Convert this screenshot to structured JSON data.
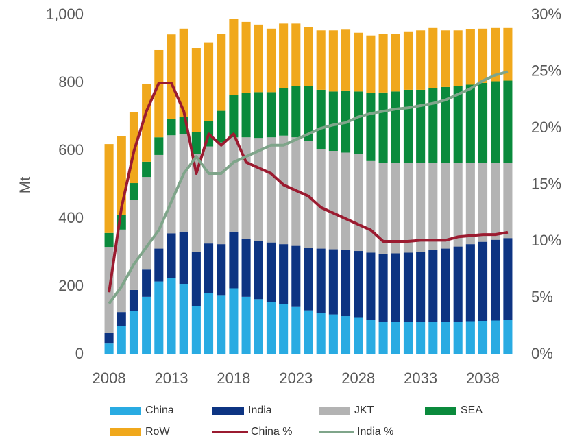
{
  "chart_data": {
    "type": "bar",
    "stacked": true,
    "y_label": "Mt",
    "x": [
      2008,
      2009,
      2010,
      2011,
      2012,
      2013,
      2014,
      2015,
      2016,
      2017,
      2018,
      2019,
      2020,
      2021,
      2022,
      2023,
      2024,
      2025,
      2026,
      2027,
      2028,
      2029,
      2030,
      2031,
      2032,
      2033,
      2034,
      2035,
      2036,
      2037,
      2038,
      2039,
      2040
    ],
    "xlim": [
      2007.5,
      2040.5
    ],
    "xticks": [
      2008,
      2013,
      2018,
      2023,
      2028,
      2033,
      2038
    ],
    "ylim": [
      0,
      1000
    ],
    "yticks": [
      0,
      200,
      400,
      600,
      800,
      {
        "value": 1000,
        "label": "1,000"
      }
    ],
    "y2lim": [
      0,
      30
    ],
    "y2ticks": [
      {
        "value": 0,
        "label": "0%"
      },
      {
        "value": 5,
        "label": "5%"
      },
      {
        "value": 10,
        "label": "10%"
      },
      {
        "value": 15,
        "label": "15%"
      },
      {
        "value": 20,
        "label": "20%"
      },
      {
        "value": 25,
        "label": "25%"
      },
      {
        "value": 30,
        "label": "30%"
      }
    ],
    "grid": false,
    "legend": "bottom",
    "series": [
      {
        "name": "China",
        "color": "#29abe2",
        "values": [
          34,
          84,
          128,
          170,
          215,
          226,
          208,
          143,
          180,
          175,
          195,
          170,
          163,
          155,
          148,
          140,
          130,
          122,
          118,
          113,
          108,
          103,
          97,
          95,
          95,
          95,
          96,
          96,
          97,
          98,
          99,
          100,
          101
        ]
      },
      {
        "name": "India",
        "color": "#0d3482",
        "values": [
          29,
          41,
          62,
          80,
          97,
          131,
          154,
          159,
          147,
          150,
          167,
          170,
          172,
          175,
          177,
          180,
          185,
          190,
          192,
          195,
          197,
          197,
          200,
          203,
          205,
          208,
          212,
          216,
          221,
          227,
          233,
          238,
          242
        ]
      },
      {
        "name": "JKT",
        "color": "#b3b3b3",
        "values": [
          254,
          243,
          265,
          273,
          276,
          289,
          288,
          288,
          286,
          300,
          278,
          300,
          303,
          310,
          320,
          320,
          315,
          293,
          290,
          287,
          285,
          270,
          268,
          267,
          265,
          262,
          257,
          253,
          247,
          240,
          233,
          227,
          222
        ]
      },
      {
        "name": "SEA",
        "color": "#0a8a3c",
        "values": [
          41,
          44,
          50,
          45,
          52,
          49,
          50,
          65,
          75,
          93,
          125,
          130,
          135,
          133,
          140,
          150,
          160,
          175,
          175,
          183,
          185,
          200,
          207,
          210,
          215,
          215,
          220,
          223,
          225,
          230,
          235,
          240,
          242
        ]
      },
      {
        "name": "RoW",
        "color": "#f0a81c",
        "values": [
          262,
          232,
          210,
          230,
          257,
          248,
          260,
          248,
          232,
          227,
          223,
          210,
          199,
          187,
          190,
          185,
          175,
          175,
          180,
          179,
          173,
          170,
          173,
          170,
          172,
          175,
          177,
          167,
          165,
          163,
          160,
          157,
          155
        ]
      },
      {
        "name": "China %",
        "color": "#9b1b30",
        "type": "line",
        "axis": "y2",
        "values": [
          5.5,
          13,
          18,
          21.5,
          24,
          24,
          21.5,
          16,
          19.5,
          18.5,
          19.5,
          17,
          16.5,
          16,
          15,
          14.5,
          14,
          13,
          12.5,
          12,
          11.5,
          11,
          10,
          10,
          10,
          10.1,
          10.1,
          10.1,
          10.4,
          10.5,
          10.6,
          10.6,
          10.8
        ]
      },
      {
        "name": "India %",
        "color": "#7fa58a",
        "type": "line",
        "axis": "y2",
        "values": [
          4.5,
          6,
          8,
          9.5,
          11,
          13.5,
          16,
          17.5,
          16,
          16,
          17,
          17.5,
          18,
          18.5,
          18.5,
          19,
          19.5,
          20,
          20.3,
          20.5,
          21,
          21.3,
          21.5,
          21.7,
          21.8,
          22,
          22.2,
          22.5,
          23,
          23.5,
          24.2,
          24.7,
          25
        ]
      }
    ]
  }
}
